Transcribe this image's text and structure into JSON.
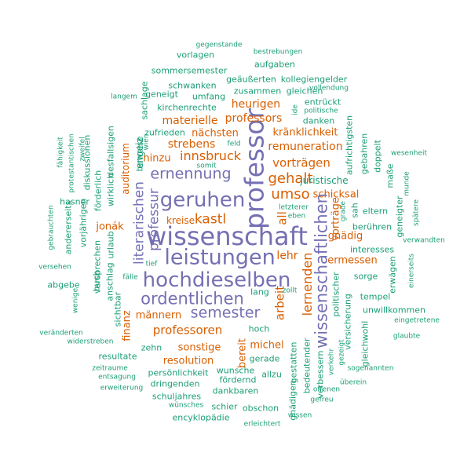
{
  "colors": {
    "purple": "#7570b3",
    "orange": "#d95f02",
    "green": "#1b9e77"
  },
  "words": [
    {
      "text": "wissenschaft",
      "color": "purple"
    },
    {
      "text": "hochdieselben",
      "color": "purple"
    },
    {
      "text": "leistungen",
      "color": "purple"
    },
    {
      "text": "professor",
      "color": "purple"
    },
    {
      "text": "geruhen",
      "color": "purple"
    },
    {
      "text": "ordentlichen",
      "color": "purple"
    },
    {
      "text": "wissenschaftlichen",
      "color": "purple"
    },
    {
      "text": "semester",
      "color": "purple"
    },
    {
      "text": "ernennung",
      "color": "purple"
    },
    {
      "text": "literarischen",
      "color": "purple"
    },
    {
      "text": "professur",
      "color": "purple"
    },
    {
      "text": "gehalt",
      "color": "orange"
    },
    {
      "text": "umso",
      "color": "orange"
    },
    {
      "text": "kastl",
      "color": "orange"
    },
    {
      "text": "innsbruck",
      "color": "orange"
    },
    {
      "text": "professoren",
      "color": "orange"
    },
    {
      "text": "lernenden",
      "color": "orange"
    },
    {
      "text": "arbeit",
      "color": "orange"
    },
    {
      "text": "all",
      "color": "orange"
    },
    {
      "text": "vorträgen",
      "color": "orange"
    },
    {
      "text": "lehr",
      "color": "orange"
    },
    {
      "text": "materielle",
      "color": "orange"
    },
    {
      "text": "professors",
      "color": "orange"
    },
    {
      "text": "heurigen",
      "color": "orange"
    },
    {
      "text": "remuneration",
      "color": "orange"
    },
    {
      "text": "kränklichkeit",
      "color": "orange"
    },
    {
      "text": "strebens",
      "color": "orange"
    },
    {
      "text": "nächsten",
      "color": "orange"
    },
    {
      "text": "schicksal",
      "color": "orange"
    },
    {
      "text": "gnädig",
      "color": "orange"
    },
    {
      "text": "ermessen",
      "color": "orange"
    },
    {
      "text": "michel",
      "color": "orange"
    },
    {
      "text": "resolution",
      "color": "orange"
    },
    {
      "text": "männern",
      "color": "orange"
    },
    {
      "text": "jonák",
      "color": "orange"
    },
    {
      "text": "vorträge",
      "color": "orange"
    },
    {
      "text": "hinzu",
      "color": "orange"
    },
    {
      "text": "sonstige",
      "color": "orange"
    },
    {
      "text": "bereit",
      "color": "orange"
    },
    {
      "text": "finanz",
      "color": "orange"
    },
    {
      "text": "kreise",
      "color": "orange"
    },
    {
      "text": "juristische",
      "color": "green"
    },
    {
      "text": "auditorium",
      "color": "orange"
    },
    {
      "text": "engeiz",
      "color": "green"
    },
    {
      "text": "gegenstande",
      "color": "green"
    },
    {
      "text": "bestrebungen",
      "color": "green"
    },
    {
      "text": "vorlagen",
      "color": "green"
    },
    {
      "text": "aufgaben",
      "color": "green"
    },
    {
      "text": "sommersemester",
      "color": "green"
    },
    {
      "text": "geäußerten",
      "color": "green"
    },
    {
      "text": "kollegiengelder",
      "color": "green"
    },
    {
      "text": "schwanken",
      "color": "green"
    },
    {
      "text": "zusammen",
      "color": "green"
    },
    {
      "text": "vollendung",
      "color": "green"
    },
    {
      "text": "geneigt",
      "color": "green"
    },
    {
      "text": "umfang",
      "color": "green"
    },
    {
      "text": "gleichen",
      "color": "green"
    },
    {
      "text": "langem",
      "color": "green"
    },
    {
      "text": "sachlage",
      "color": "green"
    },
    {
      "text": "kirchenrechte",
      "color": "green"
    },
    {
      "text": "entrückt",
      "color": "green"
    },
    {
      "text": "politische",
      "color": "green"
    },
    {
      "text": "danken",
      "color": "green"
    },
    {
      "text": "zufrieden",
      "color": "green"
    },
    {
      "text": "ide",
      "color": "green"
    },
    {
      "text": "wien",
      "color": "green"
    },
    {
      "text": "feld",
      "color": "green"
    },
    {
      "text": "aufrichtigsten",
      "color": "green"
    },
    {
      "text": "beweise",
      "color": "green"
    },
    {
      "text": "somit",
      "color": "green"
    },
    {
      "text": "gebahren",
      "color": "green"
    },
    {
      "text": "doppelt",
      "color": "green"
    },
    {
      "text": "wesenheit",
      "color": "green"
    },
    {
      "text": "fähigkeit",
      "color": "green"
    },
    {
      "text": "protestantischen",
      "color": "green"
    },
    {
      "text": "zweifel",
      "color": "green"
    },
    {
      "text": "diskussionen",
      "color": "green"
    },
    {
      "text": "desfallsigen",
      "color": "green"
    },
    {
      "text": "wirklich",
      "color": "green"
    },
    {
      "text": "förderlich",
      "color": "green"
    },
    {
      "text": "maße",
      "color": "green"
    },
    {
      "text": "munde",
      "color": "green"
    },
    {
      "text": "hasner",
      "color": "green"
    },
    {
      "text": "vorjährigen",
      "color": "green"
    },
    {
      "text": "andererseits",
      "color": "green"
    },
    {
      "text": "gebrauchten",
      "color": "green"
    },
    {
      "text": "letzterer",
      "color": "green"
    },
    {
      "text": "eben",
      "color": "green"
    },
    {
      "text": "grade",
      "color": "green"
    },
    {
      "text": "sah",
      "color": "green"
    },
    {
      "text": "eltern",
      "color": "green"
    },
    {
      "text": "geneigter",
      "color": "green"
    },
    {
      "text": "spätere",
      "color": "green"
    },
    {
      "text": "urlaub",
      "color": "green"
    },
    {
      "text": "berühren",
      "color": "green"
    },
    {
      "text": "interesses",
      "color": "green"
    },
    {
      "text": "verwandten",
      "color": "green"
    },
    {
      "text": "tief",
      "color": "green"
    },
    {
      "text": "versehen",
      "color": "green"
    },
    {
      "text": "buch",
      "color": "green"
    },
    {
      "text": "versprechen",
      "color": "green"
    },
    {
      "text": "anschlag",
      "color": "green"
    },
    {
      "text": "fälle",
      "color": "green"
    },
    {
      "text": "sorge",
      "color": "green"
    },
    {
      "text": "erwägen",
      "color": "green"
    },
    {
      "text": "einerseits",
      "color": "green"
    },
    {
      "text": "abgebe",
      "color": "green"
    },
    {
      "text": "lang",
      "color": "green"
    },
    {
      "text": "zollt",
      "color": "green"
    },
    {
      "text": "tempel",
      "color": "green"
    },
    {
      "text": "wenige",
      "color": "green"
    },
    {
      "text": "unwillkommen",
      "color": "green"
    },
    {
      "text": "eingetretene",
      "color": "green"
    },
    {
      "text": "sichtbar",
      "color": "green"
    },
    {
      "text": "hoch",
      "color": "green"
    },
    {
      "text": "veränderten",
      "color": "green"
    },
    {
      "text": "widerstreben",
      "color": "green"
    },
    {
      "text": "zehn",
      "color": "green"
    },
    {
      "text": "politischer",
      "color": "green"
    },
    {
      "text": "versicherung",
      "color": "green"
    },
    {
      "text": "verkehr",
      "color": "green"
    },
    {
      "text": "gleichwohl",
      "color": "green"
    },
    {
      "text": "glaubte",
      "color": "green"
    },
    {
      "text": "resultate",
      "color": "green"
    },
    {
      "text": "gerade",
      "color": "green"
    },
    {
      "text": "gezeigt",
      "color": "green"
    },
    {
      "text": "zeitraume",
      "color": "green"
    },
    {
      "text": "entsagung",
      "color": "green"
    },
    {
      "text": "erweiterung",
      "color": "green"
    },
    {
      "text": "persönlichkeit",
      "color": "green"
    },
    {
      "text": "dringenden",
      "color": "green"
    },
    {
      "text": "schuljahres",
      "color": "green"
    },
    {
      "text": "wunsche",
      "color": "green"
    },
    {
      "text": "fördernd",
      "color": "green"
    },
    {
      "text": "dankbaren",
      "color": "green"
    },
    {
      "text": "allzu",
      "color": "green"
    },
    {
      "text": "gestatten",
      "color": "green"
    },
    {
      "text": "bedeutender",
      "color": "green"
    },
    {
      "text": "verbessern",
      "color": "green"
    },
    {
      "text": "sogenannten",
      "color": "green"
    },
    {
      "text": "überein",
      "color": "green"
    },
    {
      "text": "offenen",
      "color": "green"
    },
    {
      "text": "gnädigen",
      "color": "green"
    },
    {
      "text": "wünsches",
      "color": "green"
    },
    {
      "text": "schier",
      "color": "green"
    },
    {
      "text": "obschon",
      "color": "green"
    },
    {
      "text": "gefreu",
      "color": "green"
    },
    {
      "text": "encyklopädie",
      "color": "green"
    },
    {
      "text": "wissen",
      "color": "green"
    },
    {
      "text": "erleichtert",
      "color": "green"
    }
  ]
}
